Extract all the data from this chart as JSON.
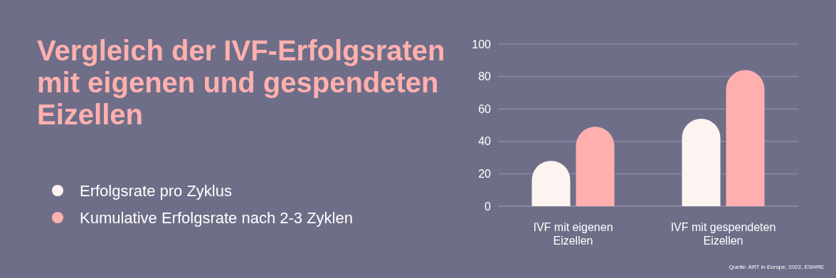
{
  "chart_data": {
    "type": "bar",
    "title": "Vergleich der IVF-Erfolgsraten mit eigenen und gespendeten Eizellen",
    "categories": [
      "IVF mit eigenen Eizellen",
      "IVF mit gespendeten Eizellen"
    ],
    "series": [
      {
        "name": "Erfolgsrate pro Zyklus",
        "color": "#fdf3f1",
        "values": [
          28,
          54
        ]
      },
      {
        "name": "Kumulative Erfolgsrate nach 2-3 Zyklen",
        "color": "#ffb0ae",
        "values": [
          49,
          84
        ]
      }
    ],
    "ylim": [
      0,
      100
    ],
    "yticks": [
      0,
      20,
      40,
      60,
      80,
      100
    ],
    "grid": "y",
    "legend": "left",
    "annotations": [
      "Quelle: ART in Europe, 2022, ESHRE"
    ]
  }
}
